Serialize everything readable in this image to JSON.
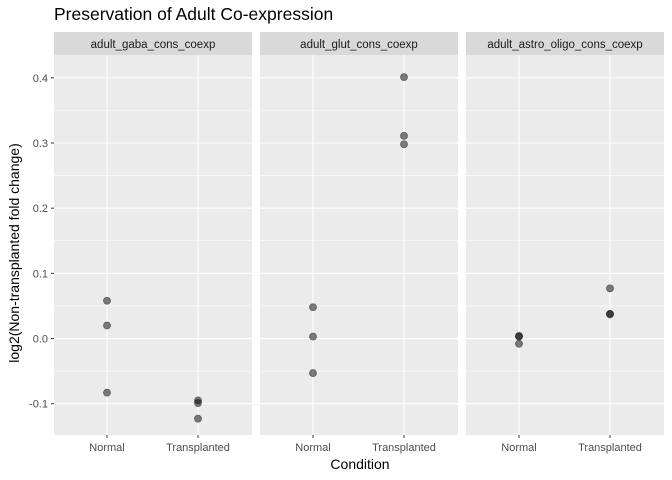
{
  "chart_data": {
    "type": "scatter",
    "title": "Preservation of Adult Co-expression",
    "xlabel": "Condition",
    "ylabel": "log2(Non-transplanted fold change)",
    "categories": [
      "Normal",
      "Transplanted"
    ],
    "ylim": [
      -0.148,
      0.435
    ],
    "yticks": [
      -0.1,
      0.0,
      0.1,
      0.2,
      0.3,
      0.4
    ],
    "ytick_labels": [
      "-0.1",
      "0.0",
      "0.1",
      "0.2",
      "0.3",
      "0.4"
    ],
    "grid": true,
    "point_color": "#000000",
    "point_alpha": 0.5,
    "panel_background": "#ebebeb",
    "strip_background": "#d9d9d9",
    "facets": [
      {
        "name": "adult_gaba_cons_coexp",
        "points": [
          {
            "x": "Normal",
            "y": 0.058
          },
          {
            "x": "Normal",
            "y": 0.02
          },
          {
            "x": "Normal",
            "y": -0.083
          },
          {
            "x": "Transplanted",
            "y": -0.095
          },
          {
            "x": "Transplanted",
            "y": -0.099
          },
          {
            "x": "Transplanted",
            "y": -0.123
          }
        ]
      },
      {
        "name": "adult_glut_cons_coexp",
        "points": [
          {
            "x": "Normal",
            "y": 0.048
          },
          {
            "x": "Normal",
            "y": 0.003
          },
          {
            "x": "Normal",
            "y": -0.053
          },
          {
            "x": "Transplanted",
            "y": 0.401
          },
          {
            "x": "Transplanted",
            "y": 0.311
          },
          {
            "x": "Transplanted",
            "y": 0.298
          }
        ]
      },
      {
        "name": "adult_astro_oligo_cons_coexp",
        "points": [
          {
            "x": "Normal",
            "y": 0.004
          },
          {
            "x": "Normal",
            "y": 0.003
          },
          {
            "x": "Normal",
            "y": -0.008
          },
          {
            "x": "Transplanted",
            "y": 0.077
          },
          {
            "x": "Transplanted",
            "y": 0.038
          },
          {
            "x": "Transplanted",
            "y": 0.037
          }
        ]
      }
    ]
  }
}
